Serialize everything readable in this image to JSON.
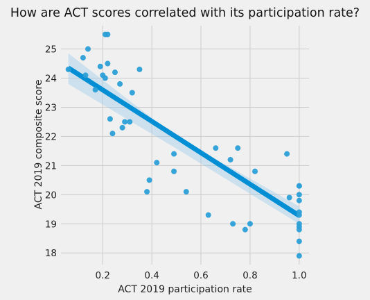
{
  "chart_data": {
    "type": "scatter",
    "title": "How are ACT scores correlated with its participation rate?",
    "xlabel": "ACT 2019 participation rate",
    "ylabel": "ACT 2019 composite score",
    "xlim": [
      0.03,
      1.04
    ],
    "ylim": [
      17.6,
      25.8
    ],
    "x_ticks": [
      0.2,
      0.4,
      0.6,
      0.8,
      1.0
    ],
    "x_tick_labels": [
      "0.2",
      "0.4",
      "0.6",
      "0.8",
      "1.0"
    ],
    "y_ticks": [
      18,
      19,
      20,
      21,
      22,
      23,
      24,
      25
    ],
    "y_tick_labels": [
      "18",
      "19",
      "20",
      "21",
      "22",
      "23",
      "24",
      "25"
    ],
    "grid": true,
    "colors": {
      "points": "#2b9fd6",
      "regression_line": "#008fd5",
      "confidence_band": "#9fcbe8",
      "background": "#f0f0f0",
      "grid": "#cbcbcb"
    },
    "points": [
      {
        "x": 0.06,
        "y": 24.3
      },
      {
        "x": 0.12,
        "y": 24.7
      },
      {
        "x": 0.13,
        "y": 24.1
      },
      {
        "x": 0.14,
        "y": 25.0
      },
      {
        "x": 0.17,
        "y": 23.6
      },
      {
        "x": 0.19,
        "y": 24.4
      },
      {
        "x": 0.2,
        "y": 24.1
      },
      {
        "x": 0.21,
        "y": 24.0
      },
      {
        "x": 0.21,
        "y": 25.5
      },
      {
        "x": 0.22,
        "y": 25.5
      },
      {
        "x": 0.22,
        "y": 24.5
      },
      {
        "x": 0.23,
        "y": 22.6
      },
      {
        "x": 0.24,
        "y": 22.1
      },
      {
        "x": 0.25,
        "y": 24.2
      },
      {
        "x": 0.27,
        "y": 23.8
      },
      {
        "x": 0.28,
        "y": 22.3
      },
      {
        "x": 0.29,
        "y": 22.5
      },
      {
        "x": 0.31,
        "y": 22.5
      },
      {
        "x": 0.32,
        "y": 23.5
      },
      {
        "x": 0.35,
        "y": 24.3
      },
      {
        "x": 0.38,
        "y": 20.1
      },
      {
        "x": 0.39,
        "y": 20.5
      },
      {
        "x": 0.42,
        "y": 21.1
      },
      {
        "x": 0.49,
        "y": 21.4
      },
      {
        "x": 0.49,
        "y": 20.8
      },
      {
        "x": 0.54,
        "y": 20.1
      },
      {
        "x": 0.63,
        "y": 19.3
      },
      {
        "x": 0.66,
        "y": 21.6
      },
      {
        "x": 0.72,
        "y": 21.2
      },
      {
        "x": 0.73,
        "y": 19.0
      },
      {
        "x": 0.75,
        "y": 21.6
      },
      {
        "x": 0.78,
        "y": 18.8
      },
      {
        "x": 0.8,
        "y": 19.0
      },
      {
        "x": 0.82,
        "y": 20.8
      },
      {
        "x": 0.95,
        "y": 21.4
      },
      {
        "x": 0.96,
        "y": 19.9
      },
      {
        "x": 1.0,
        "y": 20.3
      },
      {
        "x": 1.0,
        "y": 20.3
      },
      {
        "x": 1.0,
        "y": 20.0
      },
      {
        "x": 1.0,
        "y": 19.8
      },
      {
        "x": 1.0,
        "y": 19.4
      },
      {
        "x": 1.0,
        "y": 19.3
      },
      {
        "x": 1.0,
        "y": 19.0
      },
      {
        "x": 1.0,
        "y": 18.9
      },
      {
        "x": 1.0,
        "y": 18.8
      },
      {
        "x": 1.0,
        "y": 18.4
      },
      {
        "x": 1.0,
        "y": 17.9
      }
    ],
    "regression": {
      "x_start": 0.06,
      "y_start": 24.35,
      "x_end": 1.0,
      "y_end": 19.28
    },
    "confidence_band": {
      "x": [
        0.06,
        0.5,
        1.0
      ],
      "upper": [
        24.85,
        21.98,
        19.6
      ],
      "lower": [
        23.8,
        21.58,
        19.0
      ]
    }
  }
}
